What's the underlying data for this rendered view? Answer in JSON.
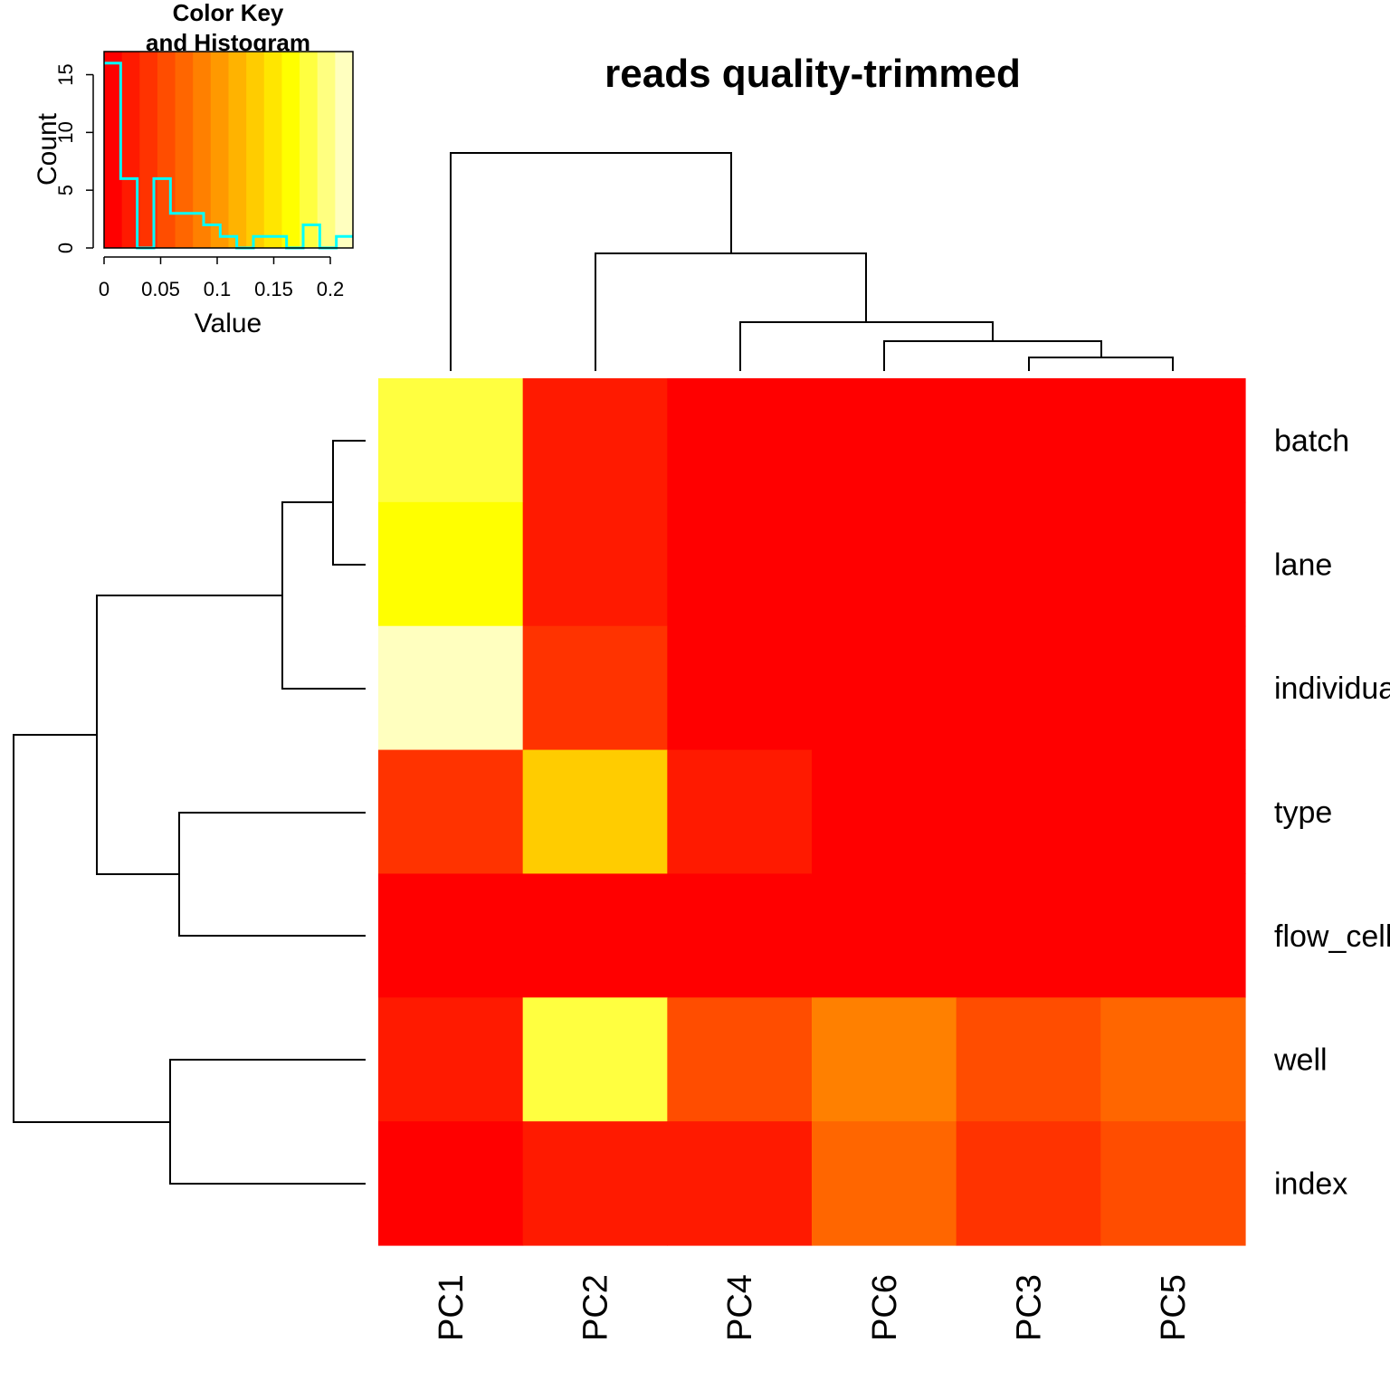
{
  "chart_data": {
    "type": "heatmap",
    "title": "reads quality-trimmed",
    "rows": [
      "batch",
      "lane",
      "individual",
      "type",
      "flow_cell",
      "well",
      "index"
    ],
    "columns": [
      "PC1",
      "PC2",
      "PC4",
      "PC6",
      "PC3",
      "PC5"
    ],
    "values": [
      [
        0.18,
        0.03,
        0.01,
        0.0,
        0.0,
        0.0
      ],
      [
        0.16,
        0.03,
        0.01,
        0.0,
        0.0,
        0.0
      ],
      [
        0.22,
        0.04,
        0.0,
        0.0,
        0.01,
        0.0
      ],
      [
        0.04,
        0.14,
        0.03,
        0.0,
        0.01,
        0.0
      ],
      [
        0.01,
        0.01,
        0.0,
        0.0,
        0.0,
        0.0
      ],
      [
        0.03,
        0.18,
        0.05,
        0.09,
        0.05,
        0.07
      ],
      [
        0.0,
        0.03,
        0.03,
        0.07,
        0.04,
        0.05
      ]
    ],
    "color_scale": {
      "palette": [
        "#FF0000",
        "#FF1A00",
        "#FF3300",
        "#FF4D00",
        "#FF6600",
        "#FF8000",
        "#FF9900",
        "#FFB300",
        "#FFCC00",
        "#FFE600",
        "#FFFF00",
        "#FFFF40",
        "#FFFF80",
        "#FFFFBF"
      ],
      "range": [
        0,
        0.22
      ]
    },
    "color_key": {
      "title_line1": "Color Key",
      "title_line2": "and Histogram",
      "xlabel": "Value",
      "ylabel": "Count",
      "x_ticks": [
        "0",
        "0.05",
        "0.1",
        "0.15",
        "0.2"
      ],
      "y_ticks": [
        "0",
        "5",
        "10",
        "15"
      ],
      "histogram_color": "#00FFFF",
      "histogram_counts": [
        16,
        6,
        0,
        6,
        3,
        3,
        2,
        1,
        0,
        1,
        1,
        0,
        2,
        0,
        1
      ]
    },
    "col_dendrogram": [
      "PC1",
      [
        [
          "PC2",
          [
            "PC4",
            [
              "PC6",
              [
                "PC3",
                "PC5"
              ]
            ]
          ]
        ]
      ]
    ],
    "row_dendrogram": [
      [
        [
          "batch",
          "lane"
        ],
        "individual"
      ],
      [
        "type",
        "flow_cell"
      ],
      [
        "well",
        "index"
      ]
    ]
  }
}
